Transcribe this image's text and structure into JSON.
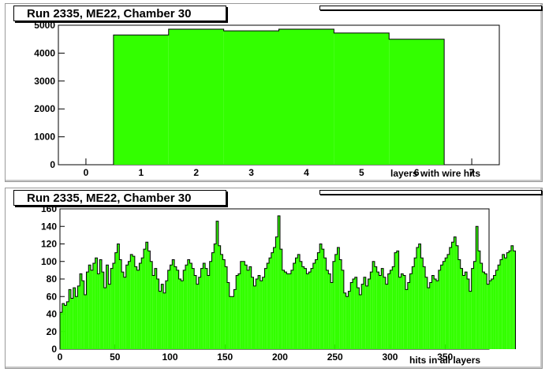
{
  "chart_data": [
    {
      "type": "bar",
      "title": "Run 2335, ME22, Chamber 30",
      "xlabel": "layers with wire hits",
      "ylabel": "",
      "categories": [
        0,
        1,
        2,
        3,
        4,
        5,
        6
      ],
      "values": [
        0,
        4650,
        4860,
        4800,
        4860,
        4720,
        4500
      ],
      "xlim": [
        -0.5,
        7.5
      ],
      "ylim": [
        0,
        5000
      ],
      "x_ticks": [
        0,
        1,
        2,
        3,
        4,
        5,
        6,
        7
      ],
      "y_ticks": [
        0,
        1000,
        2000,
        3000,
        4000,
        5000
      ],
      "fill_color": "#33ff00",
      "grid": false
    },
    {
      "type": "bar",
      "title": "Run 2335, ME22, Chamber 30",
      "xlabel": "hits in all layers",
      "ylabel": "",
      "bin_width": 2,
      "x_start": 0,
      "values": [
        42,
        52,
        50,
        54,
        68,
        58,
        70,
        60,
        72,
        86,
        78,
        62,
        88,
        96,
        90,
        98,
        104,
        86,
        102,
        88,
        70,
        96,
        74,
        92,
        98,
        110,
        120,
        102,
        88,
        82,
        96,
        100,
        108,
        106,
        94,
        90,
        98,
        104,
        114,
        122,
        112,
        100,
        84,
        92,
        80,
        66,
        74,
        64,
        78,
        90,
        96,
        102,
        94,
        90,
        80,
        78,
        90,
        96,
        102,
        98,
        92,
        84,
        74,
        82,
        92,
        98,
        92,
        84,
        100,
        110,
        120,
        146,
        118,
        108,
        102,
        94,
        76,
        60,
        60,
        68,
        84,
        86,
        100,
        100,
        96,
        90,
        94,
        82,
        72,
        80,
        84,
        78,
        82,
        92,
        98,
        104,
        110,
        116,
        128,
        152,
        114,
        90,
        88,
        86,
        86,
        90,
        98,
        104,
        108,
        100,
        94,
        92,
        86,
        88,
        92,
        98,
        102,
        110,
        120,
        114,
        104,
        90,
        86,
        76,
        100,
        108,
        116,
        102,
        90,
        64,
        60,
        66,
        76,
        80,
        82,
        70,
        62,
        74,
        82,
        72,
        80,
        88,
        100,
        94,
        88,
        84,
        92,
        82,
        74,
        86,
        90,
        94,
        110,
        112,
        82,
        86,
        84,
        68,
        76,
        86,
        94,
        104,
        116,
        120,
        104,
        94,
        82,
        70,
        76,
        84,
        80,
        78,
        90,
        96,
        100,
        104,
        108,
        116,
        122,
        128,
        118,
        102,
        92,
        84,
        88,
        80,
        66,
        92,
        100,
        140,
        112,
        98,
        88,
        86,
        74,
        78,
        80,
        84,
        90,
        96,
        102,
        108,
        104,
        110,
        112,
        118,
        112
      ],
      "xlim": [
        0,
        390
      ],
      "ylim": [
        0,
        160
      ],
      "x_ticks": [
        0,
        50,
        100,
        150,
        200,
        250,
        300,
        350
      ],
      "y_ticks": [
        0,
        20,
        40,
        60,
        80,
        100,
        120,
        140,
        160
      ],
      "fill_color": "#33ff00",
      "grid": false
    }
  ]
}
